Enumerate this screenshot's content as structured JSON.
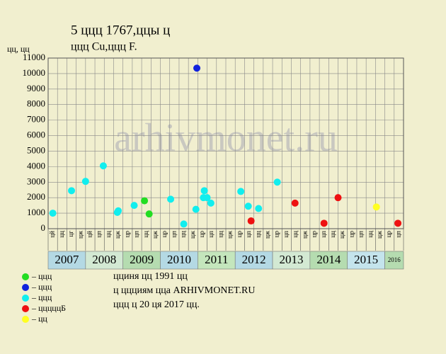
{
  "chart_data": {
    "type": "scatter",
    "title": "5 ццц 1767,ццы ц",
    "subtitle": "ццц Cu,ццц F.",
    "y_label": "цц, цц",
    "watermark": "arhivmonet.ru",
    "ylim": [
      0,
      11000
    ],
    "yticks": [
      0,
      1000,
      2000,
      3000,
      4000,
      5000,
      6000,
      7000,
      8000,
      9000,
      10000,
      11000
    ],
    "xlim": [
      0,
      38
    ],
    "grid": true,
    "categories": [
      "цй",
      "цц",
      "цг",
      "цж",
      "цй",
      "цп",
      "цц",
      "цж",
      "цр",
      "цп",
      "цц",
      "цж",
      "цр",
      "цп",
      "цц",
      "цж",
      "цр",
      "цп",
      "цц",
      "цж",
      "цр",
      "цп",
      "цц",
      "цж",
      "цр",
      "цп",
      "цц",
      "цж",
      "цр",
      "цп",
      "цц",
      "цж",
      "цр",
      "цп",
      "цц",
      "цж",
      "цр",
      "цп"
    ],
    "years": [
      {
        "label": "2007",
        "quarters": 4,
        "color": "#b4d9e4"
      },
      {
        "label": "2008",
        "quarters": 4,
        "color": "#d3e9d3"
      },
      {
        "label": "2009",
        "quarters": 4,
        "color": "#b5dcb0"
      },
      {
        "label": "2010",
        "quarters": 4,
        "color": "#b4d9e4"
      },
      {
        "label": "2011",
        "quarters": 4,
        "color": "#c4e6bc"
      },
      {
        "label": "2012",
        "quarters": 4,
        "color": "#b4d9e4"
      },
      {
        "label": "2013",
        "quarters": 4,
        "color": "#d3e9d3"
      },
      {
        "label": "2014",
        "quarters": 4,
        "color": "#b5dcb0"
      },
      {
        "label": "2015",
        "quarters": 4,
        "color": "#c4e4ec"
      },
      {
        "label": "2016",
        "quarters": 2,
        "color": "#b5dcb0"
      }
    ],
    "series": [
      {
        "name": "– ццц",
        "color": "#22dd22",
        "x": [
          10.3,
          10.8
        ],
        "values": [
          1800,
          950
        ]
      },
      {
        "name": "– ццц",
        "color": "#1122dd",
        "x": [
          15.9
        ],
        "values": [
          10350
        ]
      },
      {
        "name": "– ццц",
        "color": "#11eeee",
        "x": [
          0.5,
          2.5,
          4.0,
          5.9,
          7.4,
          7.5,
          9.2,
          13.1,
          14.5,
          15.8,
          16.6,
          16.7,
          17.0,
          17.4,
          20.6,
          21.4,
          22.5,
          24.5
        ],
        "values": [
          1000,
          2450,
          3050,
          4050,
          1050,
          1150,
          1500,
          1900,
          300,
          1250,
          2000,
          2450,
          2000,
          1650,
          2400,
          1450,
          1300,
          3000
        ]
      },
      {
        "name": "– цццццБ",
        "color": "#ee1111",
        "x": [
          21.7,
          26.4,
          29.5,
          31.0,
          37.4
        ],
        "values": [
          500,
          1650,
          350,
          2000,
          350
        ]
      },
      {
        "name": "– цц",
        "color": "#ffff22",
        "x": [
          35.1
        ],
        "values": [
          1400
        ]
      }
    ],
    "notes": [
      "цциня цц 1991 цц",
      "ц ццциям цца ARHIVMONET.RU",
      "ццц ц 20 ця 2017 цц."
    ]
  }
}
